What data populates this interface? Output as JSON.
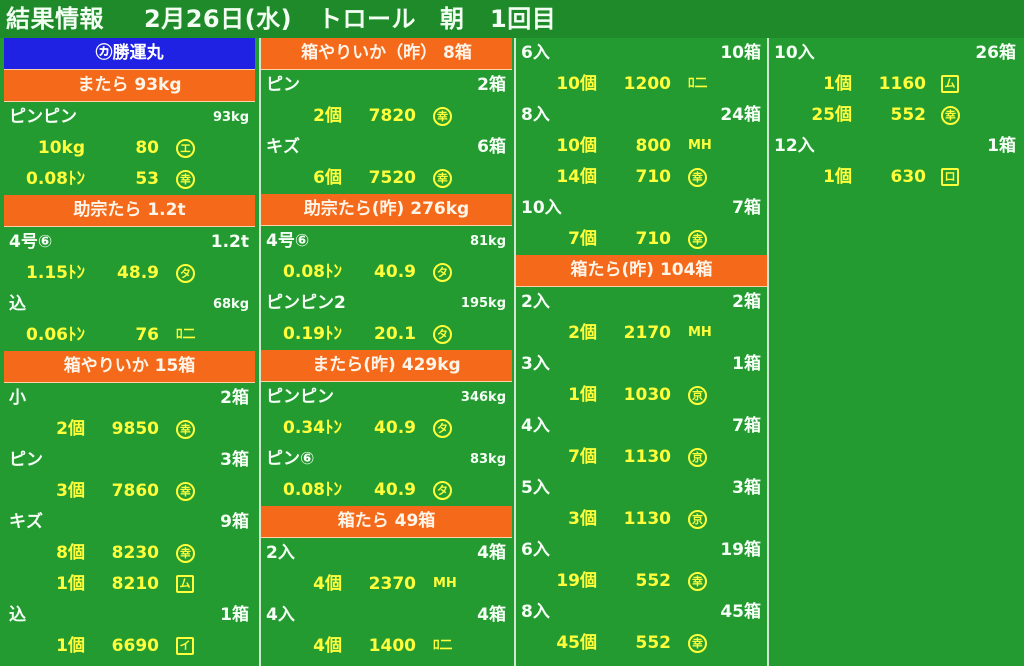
{
  "screen": {
    "title": {
      "label": "結果情報",
      "date": "2月26日(水)",
      "method": "トロール",
      "session": "朝",
      "round": "1回目"
    },
    "columns": [
      [
        {
          "type": "banner",
          "style": "blue",
          "text": "㋕勝運丸"
        },
        {
          "type": "banner",
          "text": "またら 93kg"
        },
        {
          "type": "header",
          "label": "ピンピン",
          "count": "93kg",
          "small": true
        },
        {
          "type": "data",
          "qty": "10kg",
          "price": "80",
          "mark": "エ",
          "mark_style": "circ"
        },
        {
          "type": "data",
          "qty": "0.08ﾄﾝ",
          "price": "53",
          "mark": "幸",
          "mark_style": "circ"
        },
        {
          "type": "banner",
          "text": "助宗たら 1.2t"
        },
        {
          "type": "header",
          "label": "4号⑥",
          "count": "1.2t"
        },
        {
          "type": "data",
          "qty": "1.15ﾄﾝ",
          "price": "48.9",
          "mark": "タ",
          "mark_style": "circ"
        },
        {
          "type": "header",
          "label": "込",
          "count": "68kg",
          "small": true
        },
        {
          "type": "data",
          "qty": "0.06ﾄﾝ",
          "price": "76",
          "mark": "ﾛ二",
          "mark_style": "plain"
        },
        {
          "type": "banner",
          "text": "箱やりいか 15箱"
        },
        {
          "type": "header",
          "label": "小",
          "count": "2箱"
        },
        {
          "type": "data",
          "qty": "2個",
          "price": "9850",
          "mark": "幸",
          "mark_style": "circ"
        },
        {
          "type": "header",
          "label": "ピン",
          "count": "3箱"
        },
        {
          "type": "data",
          "qty": "3個",
          "price": "7860",
          "mark": "幸",
          "mark_style": "circ"
        },
        {
          "type": "header",
          "label": "キズ",
          "count": "9箱"
        },
        {
          "type": "data",
          "qty": "8個",
          "price": "8230",
          "mark": "幸",
          "mark_style": "circ"
        },
        {
          "type": "data",
          "qty": "1個",
          "price": "8210",
          "mark": "ム",
          "mark_style": "sq"
        },
        {
          "type": "header",
          "label": "込",
          "count": "1箱"
        },
        {
          "type": "data",
          "qty": "1個",
          "price": "6690",
          "mark": "イ",
          "mark_style": "sq"
        }
      ],
      [
        {
          "type": "banner",
          "text": "箱やりいか（昨） 8箱"
        },
        {
          "type": "header",
          "label": "ピン",
          "count": "2箱"
        },
        {
          "type": "data",
          "qty": "2個",
          "price": "7820",
          "mark": "幸",
          "mark_style": "circ"
        },
        {
          "type": "header",
          "label": "キズ",
          "count": "6箱"
        },
        {
          "type": "data",
          "qty": "6個",
          "price": "7520",
          "mark": "幸",
          "mark_style": "circ"
        },
        {
          "type": "banner",
          "text": "助宗たら(昨) 276kg"
        },
        {
          "type": "header",
          "label": "4号⑥",
          "count": "81kg",
          "small": true
        },
        {
          "type": "data",
          "qty": "0.08ﾄﾝ",
          "price": "40.9",
          "mark": "タ",
          "mark_style": "circ"
        },
        {
          "type": "header",
          "label": "ピンピン2",
          "count": "195kg",
          "small": true
        },
        {
          "type": "data",
          "qty": "0.19ﾄﾝ",
          "price": "20.1",
          "mark": "タ",
          "mark_style": "circ"
        },
        {
          "type": "banner",
          "text": "またら(昨) 429kg"
        },
        {
          "type": "header",
          "label": "ピンピン",
          "count": "346kg",
          "small": true
        },
        {
          "type": "data",
          "qty": "0.34ﾄﾝ",
          "price": "40.9",
          "mark": "タ",
          "mark_style": "circ"
        },
        {
          "type": "header",
          "label": "ピン⑥",
          "count": "83kg",
          "small": true
        },
        {
          "type": "data",
          "qty": "0.08ﾄﾝ",
          "price": "40.9",
          "mark": "タ",
          "mark_style": "circ"
        },
        {
          "type": "banner",
          "text": "箱たら 49箱"
        },
        {
          "type": "header",
          "label": "2入",
          "count": "4箱"
        },
        {
          "type": "data",
          "qty": "4個",
          "price": "2370",
          "mark": "MH",
          "mark_style": "plain"
        },
        {
          "type": "header",
          "label": "4入",
          "count": "4箱"
        },
        {
          "type": "data",
          "qty": "4個",
          "price": "1400",
          "mark": "ﾛ二",
          "mark_style": "plain"
        }
      ],
      [
        {
          "type": "header",
          "label": "6入",
          "count": "10箱"
        },
        {
          "type": "data",
          "qty": "10個",
          "price": "1200",
          "mark": "ﾛ二",
          "mark_style": "plain"
        },
        {
          "type": "header",
          "label": "8入",
          "count": "24箱"
        },
        {
          "type": "data",
          "qty": "10個",
          "price": "800",
          "mark": "MH",
          "mark_style": "plain"
        },
        {
          "type": "data",
          "qty": "14個",
          "price": "710",
          "mark": "幸",
          "mark_style": "circ"
        },
        {
          "type": "header",
          "label": "10入",
          "count": "7箱"
        },
        {
          "type": "data",
          "qty": "7個",
          "price": "710",
          "mark": "幸",
          "mark_style": "circ"
        },
        {
          "type": "banner",
          "text": "箱たら(昨) 104箱"
        },
        {
          "type": "header",
          "label": "2入",
          "count": "2箱"
        },
        {
          "type": "data",
          "qty": "2個",
          "price": "2170",
          "mark": "MH",
          "mark_style": "plain"
        },
        {
          "type": "header",
          "label": "3入",
          "count": "1箱"
        },
        {
          "type": "data",
          "qty": "1個",
          "price": "1030",
          "mark": "京",
          "mark_style": "circ"
        },
        {
          "type": "header",
          "label": "4入",
          "count": "7箱"
        },
        {
          "type": "data",
          "qty": "7個",
          "price": "1130",
          "mark": "京",
          "mark_style": "circ"
        },
        {
          "type": "header",
          "label": "5入",
          "count": "3箱"
        },
        {
          "type": "data",
          "qty": "3個",
          "price": "1130",
          "mark": "京",
          "mark_style": "circ"
        },
        {
          "type": "header",
          "label": "6入",
          "count": "19箱"
        },
        {
          "type": "data",
          "qty": "19個",
          "price": "552",
          "mark": "幸",
          "mark_style": "circ"
        },
        {
          "type": "header",
          "label": "8入",
          "count": "45箱"
        },
        {
          "type": "data",
          "qty": "45個",
          "price": "552",
          "mark": "幸",
          "mark_style": "circ"
        }
      ],
      [
        {
          "type": "header",
          "label": "10入",
          "count": "26箱"
        },
        {
          "type": "data",
          "qty": "1個",
          "price": "1160",
          "mark": "ム",
          "mark_style": "sq"
        },
        {
          "type": "data",
          "qty": "25個",
          "price": "552",
          "mark": "幸",
          "mark_style": "circ"
        },
        {
          "type": "header",
          "label": "12入",
          "count": "1箱"
        },
        {
          "type": "data",
          "qty": "1個",
          "price": "630",
          "mark": "ロ",
          "mark_style": "sq"
        }
      ]
    ]
  },
  "colors": {
    "background": "#239b31",
    "banner_orange": "#f46a1a",
    "banner_blue": "#1f22e3",
    "data_yellow": "#ffff3c",
    "label_white": "#f6fff6"
  }
}
